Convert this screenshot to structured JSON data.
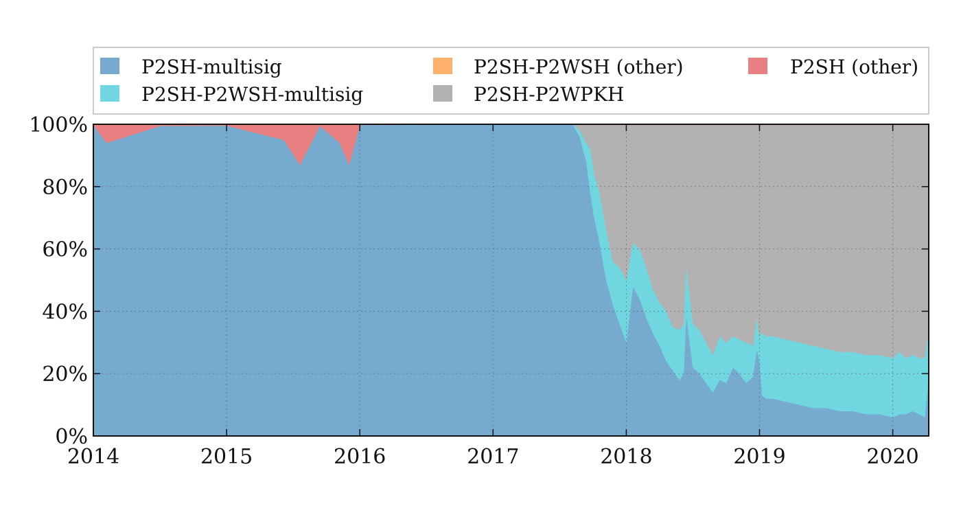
{
  "chart_data": {
    "type": "area",
    "stacked": "percent",
    "title": "",
    "xlabel": "",
    "ylabel": "",
    "xlim": [
      2014.0,
      2020.27
    ],
    "ylim": [
      0,
      100
    ],
    "grid": true,
    "legend_position": "top",
    "x_ticks": [
      2014,
      2015,
      2016,
      2017,
      2018,
      2019,
      2020
    ],
    "x_tick_labels": [
      "2014",
      "2015",
      "2016",
      "2017",
      "2018",
      "2019",
      "2020"
    ],
    "y_ticks": [
      0,
      20,
      40,
      60,
      80,
      100
    ],
    "y_tick_labels": [
      "0%",
      "20%",
      "40%",
      "60%",
      "80%",
      "100%"
    ],
    "legend": [
      "P2SH-multisig",
      "P2SH-P2WSH (other)",
      "P2SH (other)",
      "P2SH-P2WSH-multisig",
      "P2SH-P2WPKH"
    ],
    "x": [
      2014.0,
      2014.1,
      2014.5,
      2015.0,
      2015.43,
      2015.55,
      2015.7,
      2015.85,
      2015.92,
      2016.0,
      2017.0,
      2017.6,
      2017.65,
      2017.7,
      2017.73,
      2017.76,
      2017.8,
      2017.85,
      2017.9,
      2017.95,
      2018.0,
      2018.05,
      2018.1,
      2018.15,
      2018.2,
      2018.25,
      2018.3,
      2018.35,
      2018.4,
      2018.43,
      2018.45,
      2018.5,
      2018.55,
      2018.6,
      2018.65,
      2018.7,
      2018.75,
      2018.8,
      2018.85,
      2018.9,
      2018.95,
      2018.98,
      2019.0,
      2019.02,
      2019.05,
      2019.1,
      2019.2,
      2019.3,
      2019.4,
      2019.5,
      2019.6,
      2019.7,
      2019.8,
      2019.9,
      2020.0,
      2020.05,
      2020.1,
      2020.15,
      2020.2,
      2020.24,
      2020.27
    ],
    "series": [
      {
        "name": "P2SH-multisig",
        "color": "#77aacf",
        "values": [
          99.8,
          94,
          99.5,
          99.6,
          95,
          87,
          99.5,
          94,
          87,
          99.8,
          99.9,
          99.9,
          96,
          88,
          78,
          70,
          62,
          50,
          42,
          36,
          30,
          48,
          44,
          38,
          33,
          29,
          24,
          21,
          18,
          20,
          39,
          22,
          20,
          17,
          14,
          18,
          17,
          22,
          20,
          17,
          19,
          28,
          24,
          13,
          12,
          12,
          11,
          10,
          9,
          9,
          8,
          8,
          7,
          7,
          6,
          7,
          7,
          8,
          7,
          6,
          19
        ]
      },
      {
        "name": "P2SH-P2WSH-multisig",
        "color": "#70d6e0",
        "values": [
          0,
          0,
          0,
          0,
          0,
          0,
          0,
          0,
          0,
          0,
          0,
          0,
          2,
          6,
          14,
          14,
          16,
          16,
          14,
          18,
          20,
          14,
          16,
          16,
          14,
          14,
          16,
          14,
          16,
          16,
          16,
          14,
          14,
          13,
          12,
          14,
          13,
          10,
          11,
          13,
          10,
          10,
          8,
          20,
          20,
          20,
          20,
          20,
          20,
          19,
          19,
          19,
          19,
          19,
          19,
          20,
          18,
          18,
          18,
          19,
          15
        ]
      },
      {
        "name": "P2SH-P2WPKH",
        "color": "#b2b2b2",
        "values": [
          0,
          0,
          0,
          0,
          0,
          0,
          0,
          0,
          0,
          0,
          0,
          0,
          1.8,
          5.8,
          7.8,
          15.8,
          21.8,
          33.8,
          43.8,
          45.8,
          49.8,
          37.8,
          39.8,
          45.8,
          52.8,
          56.8,
          59.8,
          64.8,
          65.8,
          63.8,
          44.8,
          63.8,
          65.8,
          69.8,
          73.8,
          67.8,
          69.8,
          67.8,
          68.8,
          69.8,
          70.8,
          61.8,
          67.8,
          66.8,
          67.8,
          67.8,
          68.8,
          69.8,
          70.8,
          71.8,
          72.8,
          72.8,
          73.8,
          73.8,
          74.8,
          72.8,
          74.8,
          73.8,
          74.8,
          74.8,
          65.8
        ]
      },
      {
        "name": "P2SH-P2WSH (other)",
        "color": "#ffb26e",
        "values": [
          0,
          0,
          0,
          0,
          0,
          0,
          0,
          0,
          0,
          0,
          0,
          0,
          0,
          0,
          0,
          0,
          0,
          0,
          0,
          0,
          0,
          0,
          0,
          0,
          0,
          0,
          0,
          0,
          0,
          0,
          0,
          0,
          0,
          0,
          0,
          0,
          0,
          0,
          0,
          0,
          0,
          0,
          0,
          0,
          0,
          0,
          0,
          0,
          0,
          0,
          0,
          0,
          0,
          0,
          0,
          0,
          0,
          0,
          0,
          0,
          0
        ]
      },
      {
        "name": "P2SH (other)",
        "color": "#e87f80",
        "values": [
          0.2,
          6,
          0.5,
          0.4,
          5,
          13,
          0.5,
          6,
          13,
          0.2,
          0.1,
          0.1,
          0.2,
          0.2,
          0.2,
          0.2,
          0.2,
          0.2,
          0.2,
          0.2,
          0.2,
          0.2,
          0.2,
          0.2,
          0.2,
          0.2,
          0.2,
          0.2,
          0.2,
          0.2,
          0.2,
          0.2,
          0.2,
          0.2,
          0.2,
          0.2,
          0.2,
          0.2,
          0.2,
          0.2,
          0.2,
          0.2,
          0.2,
          0.2,
          0.2,
          0.2,
          0.2,
          0.2,
          0.2,
          0.1,
          0.2,
          0.2,
          0.2,
          0.2,
          0.2,
          0.2,
          0.2,
          0.2,
          0.2,
          0.2,
          0.2
        ]
      }
    ]
  }
}
